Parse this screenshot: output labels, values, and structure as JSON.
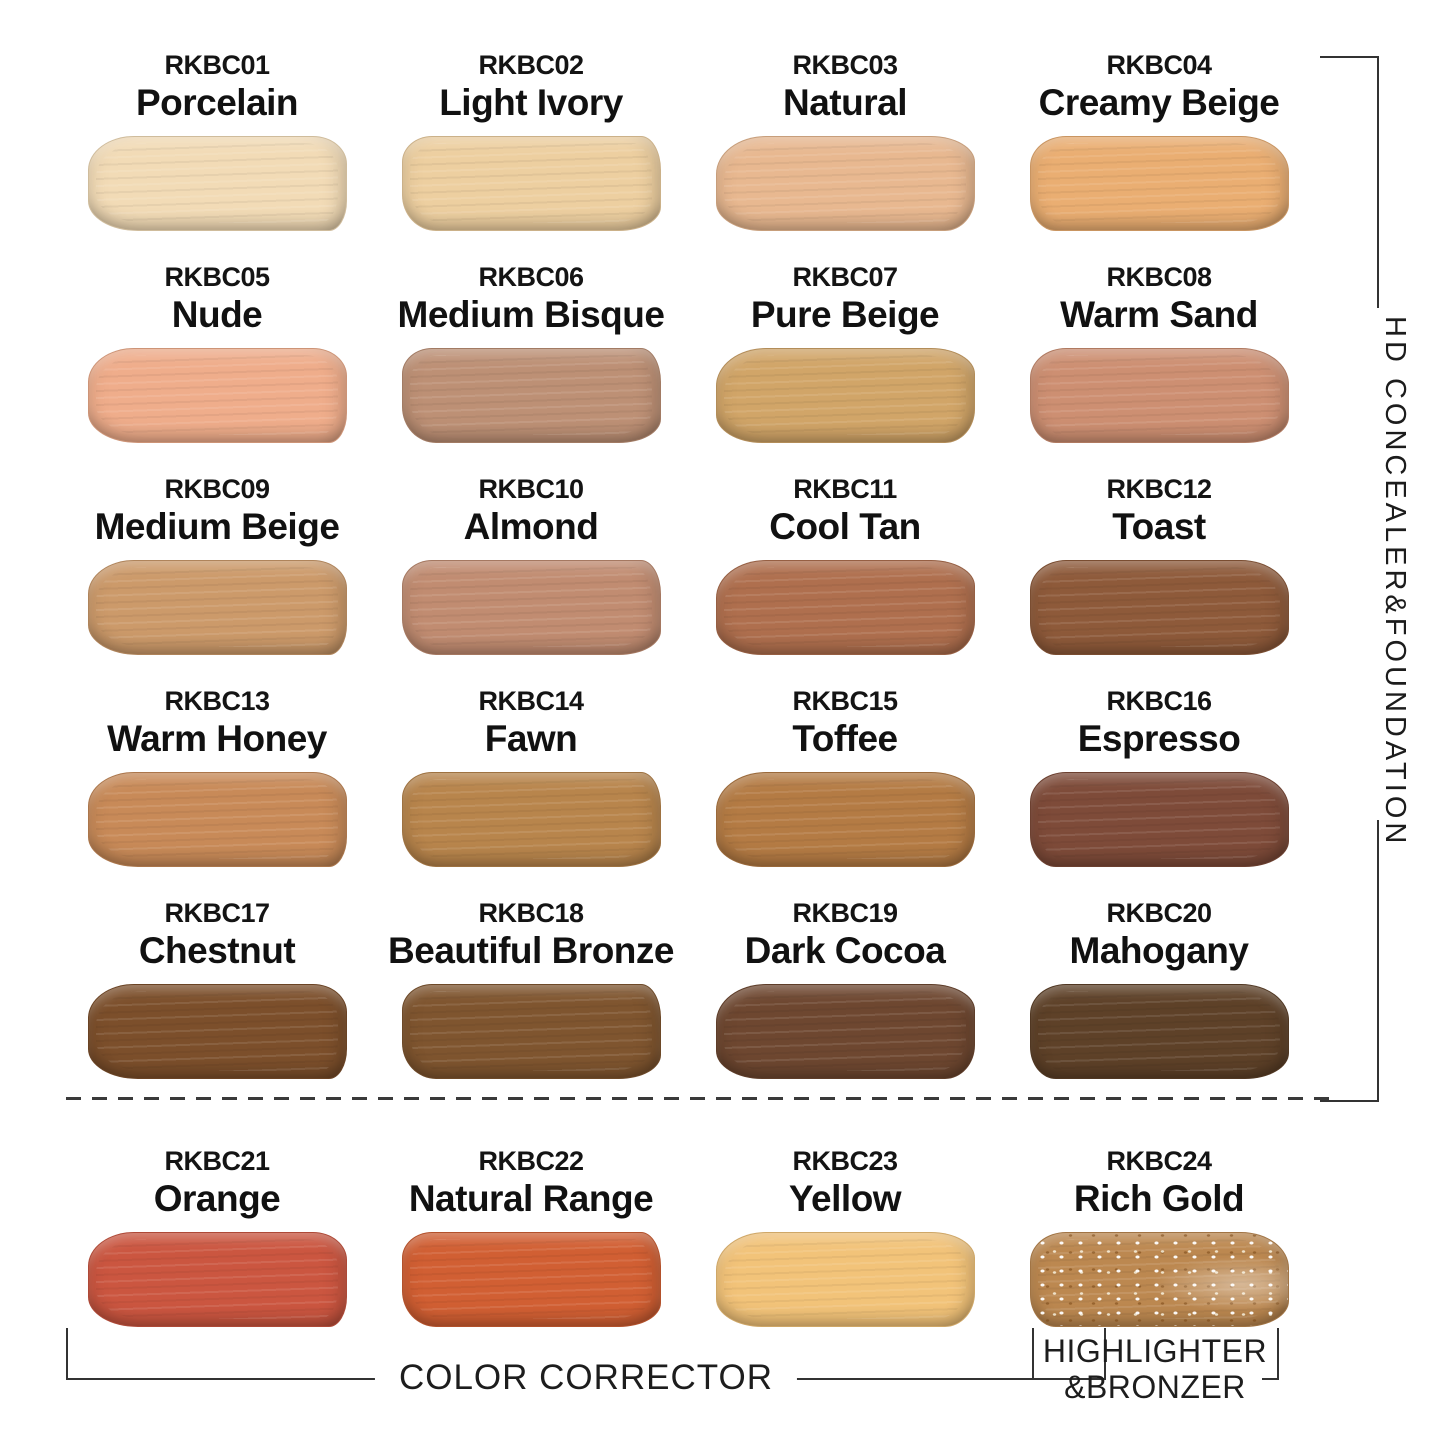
{
  "side_label": "HD CONCEALER&FOUNDATION",
  "bottom": {
    "corrector_label": "COLOR CORRECTOR",
    "highlighter": {
      "line1": "HIGHLIGHTER",
      "line2": "&BRONZER"
    }
  },
  "line_color": "#333333",
  "swatches": [
    {
      "code": "RKBC01",
      "name": "Porcelain",
      "color": "#F2DBB6"
    },
    {
      "code": "RKBC02",
      "name": "Light Ivory",
      "color": "#EDCFA0"
    },
    {
      "code": "RKBC03",
      "name": "Natural",
      "color": "#E8B890"
    },
    {
      "code": "RKBC04",
      "name": "Creamy Beige",
      "color": "#EAAE72"
    },
    {
      "code": "RKBC05",
      "name": "Nude",
      "color": "#EFAD8B"
    },
    {
      "code": "RKBC06",
      "name": "Medium Bisque",
      "color": "#BD9075"
    },
    {
      "code": "RKBC07",
      "name": "Pure Beige",
      "color": "#D1A568"
    },
    {
      "code": "RKBC08",
      "name": "Warm Sand",
      "color": "#CD8F72"
    },
    {
      "code": "RKBC09",
      "name": "Medium Beige",
      "color": "#CC9A6A"
    },
    {
      "code": "RKBC10",
      "name": "Almond",
      "color": "#C18C71"
    },
    {
      "code": "RKBC11",
      "name": "Cool Tan",
      "color": "#AF6F4E"
    },
    {
      "code": "RKBC12",
      "name": "Toast",
      "color": "#8E5A3A"
    },
    {
      "code": "RKBC13",
      "name": "Warm Honey",
      "color": "#C88A58"
    },
    {
      "code": "RKBC14",
      "name": "Fawn",
      "color": "#B8854C"
    },
    {
      "code": "RKBC15",
      "name": "Toffee",
      "color": "#B47B44"
    },
    {
      "code": "RKBC16",
      "name": "Espresso",
      "color": "#7E4B39"
    },
    {
      "code": "RKBC17",
      "name": "Chestnut",
      "color": "#7C4F2B"
    },
    {
      "code": "RKBC18",
      "name": "Beautiful Bronze",
      "color": "#7F552F"
    },
    {
      "code": "RKBC19",
      "name": "Dark Cocoa",
      "color": "#6E4730"
    },
    {
      "code": "RKBC20",
      "name": "Mahogany",
      "color": "#5E4128"
    },
    {
      "code": "RKBC21",
      "name": "Orange",
      "color": "#CB5640"
    },
    {
      "code": "RKBC22",
      "name": "Natural Range",
      "color": "#D15F33"
    },
    {
      "code": "RKBC23",
      "name": "Yellow",
      "color": "#F2C379"
    },
    {
      "code": "RKBC24",
      "name": "Rich Gold",
      "color": "#BC8850",
      "sparkle": true
    }
  ],
  "groups": {
    "concealer_foundation_range": [
      "RKBC01",
      "RKBC20"
    ],
    "color_corrector_range": [
      "RKBC21",
      "RKBC23"
    ],
    "highlighter_bronzer_range": [
      "RKBC24",
      "RKBC24"
    ]
  }
}
